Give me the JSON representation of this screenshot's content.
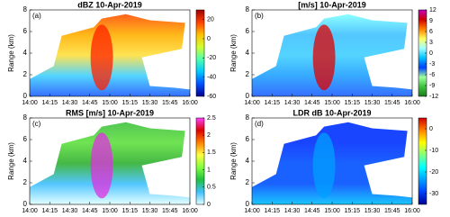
{
  "chart_data": [
    {
      "type": "heatmap",
      "title": "dBZ 10-Apr-2019",
      "panel_label": "(a)",
      "ylabel": "Range (km)",
      "xlim": [
        "14:00",
        "16:00"
      ],
      "xticks": [
        "14:00",
        "14:15",
        "14:30",
        "14:45",
        "15:00",
        "15:15",
        "15:30",
        "15:45",
        "16:00"
      ],
      "ylim": [
        0,
        8
      ],
      "yticks": [
        0,
        2,
        4,
        6,
        8
      ],
      "clim": [
        -60,
        30
      ],
      "cticks": [
        20,
        0,
        -20,
        -40,
        -60
      ],
      "colormap": [
        "#00008f",
        "#0050ff",
        "#00c8ff",
        "#50ffaf",
        "#d0ff30",
        "#ffc000",
        "#ff4000",
        "#a00000"
      ]
    },
    {
      "type": "heatmap",
      "title": "[m/s] 10-Apr-2019",
      "panel_label": "(b)",
      "ylabel": "Range (km)",
      "xlim": [
        "14:00",
        "16:00"
      ],
      "xticks": [
        "14:00",
        "14:15",
        "14:30",
        "14:45",
        "15:00",
        "15:15",
        "15:30",
        "15:45",
        "16:00"
      ],
      "ylim": [
        0,
        8
      ],
      "yticks": [
        0,
        2,
        4,
        6,
        8
      ],
      "clim": [
        -12,
        12
      ],
      "cticks": [
        12,
        9,
        6,
        3,
        0,
        -3,
        -6,
        -9,
        -12
      ],
      "colormap": [
        "#1a7a1a",
        "#40c040",
        "#a0ffa0",
        "#0040ff",
        "#00c0ff",
        "#a0ffff",
        "#ffff60",
        "#ff8000",
        "#d00000",
        "#c000c0"
      ]
    },
    {
      "type": "heatmap",
      "title": "RMS [m/s] 10-Apr-2019",
      "panel_label": "(c)",
      "ylabel": "Range (km)",
      "xlim": [
        "14:00",
        "16:00"
      ],
      "xticks": [
        "14:00",
        "14:15",
        "14:30",
        "14:45",
        "15:00",
        "15:15",
        "15:30",
        "15:45",
        "16:00"
      ],
      "ylim": [
        0,
        8
      ],
      "yticks": [
        0,
        2,
        4,
        6,
        8
      ],
      "clim": [
        0,
        2.5
      ],
      "cticks": [
        2.5,
        2,
        1.5,
        1,
        0.5,
        0
      ],
      "colormap": [
        "#e0ffff",
        "#40c0ff",
        "#20c040",
        "#80ff40",
        "#ffff40",
        "#ff8000",
        "#e00000",
        "#ff40ff"
      ]
    },
    {
      "type": "heatmap",
      "title": "LDR dB 10-Apr-2019",
      "panel_label": "(d)",
      "ylabel": "Range (km)",
      "xlim": [
        "14:00",
        "16:00"
      ],
      "xticks": [
        "14:00",
        "14:15",
        "14:30",
        "14:45",
        "15:00",
        "15:15",
        "15:30",
        "15:45",
        "16:00"
      ],
      "ylim": [
        0,
        8
      ],
      "yticks": [
        0,
        2,
        4,
        6,
        8
      ],
      "clim": [
        -35,
        5
      ],
      "cticks": [
        0,
        -10,
        -20,
        -30
      ],
      "colormap": [
        "#00008f",
        "#0040ff",
        "#00a0ff",
        "#00ffff",
        "#80ff80",
        "#ffff00",
        "#ff8000",
        "#d00000"
      ]
    }
  ]
}
